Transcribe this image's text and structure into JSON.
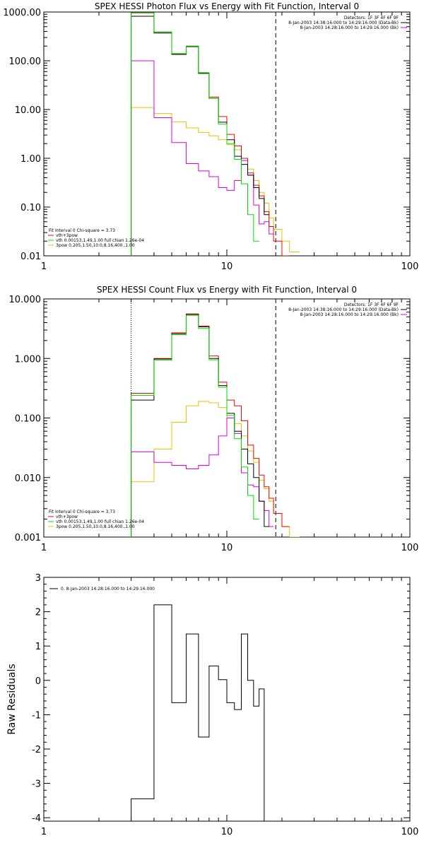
{
  "chart_data": [
    {
      "type": "line",
      "title": "SPEX HESSI Photon Flux vs Energy with Fit Function, Interval 0",
      "x_scale": "log",
      "y_scale": "log",
      "xlim": [
        1,
        100
      ],
      "ylim": [
        0.01,
        1000
      ],
      "xticks": [
        {
          "value": 1,
          "label": "1"
        },
        {
          "value": 10,
          "label": "10"
        },
        {
          "value": 100,
          "label": "100"
        }
      ],
      "yticks": [
        {
          "value": 1000,
          "label": "1000.00"
        },
        {
          "value": 100,
          "label": "100.00"
        },
        {
          "value": 10,
          "label": "10.00"
        },
        {
          "value": 1,
          "label": "1.00"
        },
        {
          "value": 0.1,
          "label": "0.10"
        },
        {
          "value": 0.01,
          "label": "0.01"
        }
      ],
      "bin_edges": [
        3,
        4,
        5,
        6,
        7,
        8,
        9,
        10,
        11,
        12,
        13,
        14,
        15,
        16,
        17,
        18,
        20,
        22,
        25
      ],
      "series": [
        {
          "name": "data",
          "color": "#000000",
          "values": [
            820,
            370,
            135,
            195,
            55,
            17,
            5.5,
            2.4,
            1.1,
            0.75,
            0.45,
            0.25,
            0.15,
            0.07
          ]
        },
        {
          "name": "vth+3pow",
          "color": "#ff0000",
          "values": [
            960,
            390,
            140,
            200,
            57,
            18,
            7.2,
            3.1,
            1.8,
            1.0,
            0.5,
            0.28,
            0.17,
            0.08,
            0.04,
            0.02,
            0.01
          ]
        },
        {
          "name": "vth 0.00153,1.49,1.00  full chian 1.26e-04",
          "color": "#00dd00",
          "values": [
            960,
            390,
            140,
            200,
            57,
            17,
            5,
            2.0,
            0.95,
            0.3,
            0.07,
            0.02
          ]
        },
        {
          "name": "3pow 0.205,1.50,10.0,8.16,400.,1.00",
          "color": "#e8c000",
          "values": [
            11,
            8.3,
            5.6,
            4.2,
            3.4,
            2.9,
            2.4,
            1.9,
            1.5,
            1.0,
            0.6,
            0.35,
            0.2,
            0.12,
            0.06,
            0.035,
            0.02,
            0.012
          ]
        },
        {
          "name": "bkg",
          "color": "#dd00dd",
          "values": [
            100,
            6.8,
            2.1,
            0.78,
            0.55,
            0.42,
            0.25,
            0.22,
            0.35,
            0.9,
            0.45,
            0.11,
            0.045,
            0.05,
            0.028
          ]
        }
      ],
      "vlines": [
        {
          "x": 3,
          "style": "dotted",
          "color": "#000000"
        },
        {
          "x": 18.5,
          "style": "dashed",
          "color": "#000000"
        }
      ],
      "legend_topright": [
        {
          "text": "Detectors: 1F 3F 4F 6F 9F",
          "color": ""
        },
        {
          "text": "8-Jan-2003 14:38:16.000 to 14:29:16.000 (Data-Bk)",
          "color": "#000000"
        },
        {
          "text": "8-Jan-2003 14:28:16.000 to 14:29:16.000 (Bk)",
          "color": "#dd00dd"
        }
      ],
      "legend_bottomleft": [
        {
          "text": "Fit Interval 0   Chi-square = 3.73",
          "color": ""
        },
        {
          "text": "vth+3pow",
          "color": "#ff0000"
        },
        {
          "text": "vth 0.00153,1.49,1.00  full chian 1.26e-04",
          "color": "#00dd00"
        },
        {
          "text": "3pow 0.205,1.50,10.0,8.16,400.,1.00",
          "color": "#e8c000"
        }
      ]
    },
    {
      "type": "line",
      "title": "SPEX HESSI Count Flux vs Energy with Fit Function, Interval 0",
      "x_scale": "log",
      "y_scale": "log",
      "xlim": [
        1,
        100
      ],
      "ylim": [
        0.001,
        10
      ],
      "xticks": [
        {
          "value": 1,
          "label": "1"
        },
        {
          "value": 10,
          "label": "10"
        },
        {
          "value": 100,
          "label": "100"
        }
      ],
      "yticks": [
        {
          "value": 10,
          "label": "10.000"
        },
        {
          "value": 1,
          "label": "1.000"
        },
        {
          "value": 0.1,
          "label": "0.100"
        },
        {
          "value": 0.01,
          "label": "0.010"
        },
        {
          "value": 0.001,
          "label": "0.001"
        }
      ],
      "bin_edges": [
        3,
        4,
        5,
        6,
        7,
        8,
        9,
        10,
        11,
        12,
        13,
        14,
        15,
        16,
        17,
        18,
        20,
        22,
        25
      ],
      "series": [
        {
          "name": "data",
          "color": "#000000",
          "values": [
            0.2,
            0.98,
            2.6,
            5.5,
            3.4,
            1.0,
            0.35,
            0.12,
            0.06,
            0.03,
            0.017,
            0.01,
            0.004,
            0.0015
          ]
        },
        {
          "name": "vth+3pow",
          "color": "#ff0000",
          "values": [
            0.26,
            1.0,
            2.7,
            5.6,
            3.5,
            1.1,
            0.4,
            0.2,
            0.16,
            0.09,
            0.035,
            0.021,
            0.011,
            0.007,
            0.0045,
            0.0025,
            0.0015
          ]
        },
        {
          "name": "vth 0.00153,1.49,1.00  full chian 1.26e-04",
          "color": "#00dd00",
          "values": [
            0.24,
            0.94,
            2.5,
            5.3,
            3.2,
            0.95,
            0.33,
            0.11,
            0.045,
            0.015,
            0.005,
            0.002
          ]
        },
        {
          "name": "3pow 0.205,1.50,10.0,8.16,400.,1.00",
          "color": "#e8c000",
          "values": [
            0.0085,
            0.03,
            0.085,
            0.16,
            0.19,
            0.18,
            0.15,
            0.1,
            0.08,
            0.05,
            0.028,
            0.018,
            0.009,
            0.0065,
            0.004,
            0.0025,
            0.0015,
            0.001
          ]
        },
        {
          "name": "bkg",
          "color": "#dd00dd",
          "values": [
            0.027,
            0.018,
            0.016,
            0.014,
            0.016,
            0.024,
            0.05,
            0.1,
            0.055,
            0.012,
            0.0075,
            0.007,
            0.004,
            0.0028,
            0.0015
          ]
        }
      ],
      "vlines": [
        {
          "x": 3,
          "style": "dotted",
          "color": "#000000"
        },
        {
          "x": 18.5,
          "style": "dashed",
          "color": "#000000"
        }
      ],
      "legend_topright": [
        {
          "text": "Detectors: 1F 3F 4F 6F 9F",
          "color": ""
        },
        {
          "text": "8-Jan-2003 14:38:16.000 to 14:29:16.000 (Data-Bk)",
          "color": "#000000"
        },
        {
          "text": "8-Jan-2003 14:28:16.000 to 14:29:16.000 (Bk)",
          "color": "#dd00dd"
        }
      ],
      "legend_bottomleft": [
        {
          "text": "Fit Interval 0   Chi-square = 3.73",
          "color": ""
        },
        {
          "text": "vth+3pow",
          "color": "#ff0000"
        },
        {
          "text": "vth 0.00153,1.49,1.00  full chian 1.26e-04",
          "color": "#00dd00"
        },
        {
          "text": "3pow 0.205,1.50,10.0,8.16,400.,1.00",
          "color": "#e8c000"
        }
      ]
    },
    {
      "type": "line",
      "title": "",
      "ylabel": "Raw Residuals",
      "x_scale": "log",
      "y_scale": "linear",
      "xlim": [
        1,
        100
      ],
      "ylim": [
        -4.1,
        3
      ],
      "xticks": [
        {
          "value": 1,
          "label": "1"
        },
        {
          "value": 10,
          "label": "10"
        },
        {
          "value": 100,
          "label": "100"
        }
      ],
      "yticks": [
        {
          "value": 3,
          "label": "3"
        },
        {
          "value": 2,
          "label": "2"
        },
        {
          "value": 1,
          "label": "1"
        },
        {
          "value": 0,
          "label": "0"
        },
        {
          "value": -1,
          "label": "-1"
        },
        {
          "value": -2,
          "label": "-2"
        },
        {
          "value": -3,
          "label": "-3"
        },
        {
          "value": -4,
          "label": "-4"
        }
      ],
      "bin_edges": [
        3,
        4,
        5,
        6,
        7,
        8,
        9,
        10,
        11,
        12,
        13,
        14,
        15,
        16,
        17,
        18
      ],
      "series": [
        {
          "name": "0.  8-Jan-2003 14:28:16.000 to 14:29:16.000",
          "color": "#000000",
          "values": [
            -3.45,
            2.2,
            -0.65,
            1.35,
            -1.65,
            0.42,
            0.02,
            -0.65,
            -0.85,
            1.35,
            0.0,
            -0.75,
            -0.25,
            -4.1
          ]
        }
      ],
      "legend_topleft": [
        {
          "text": "0.  8-Jan-2003 14:28:16.000 to 14:29:16.000",
          "color": "#000000"
        }
      ]
    }
  ]
}
